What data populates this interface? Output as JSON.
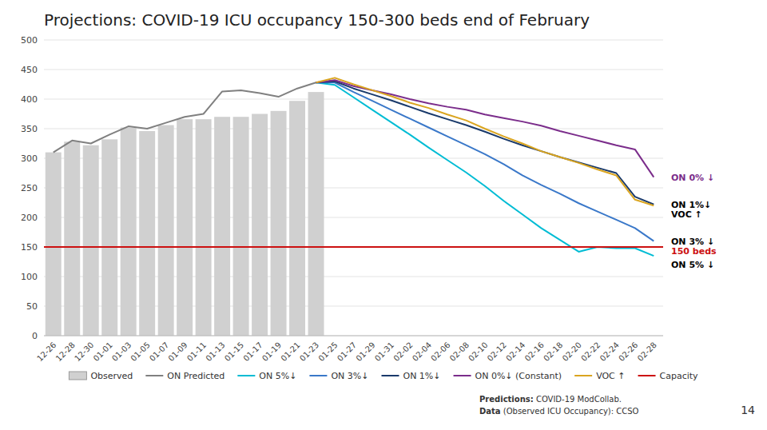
{
  "chart_data": {
    "type": "bar",
    "title": "Projections: COVID-19 ICU occupancy 150-300 beds end of February",
    "categories": [
      "12-26",
      "12-28",
      "12-30",
      "01-01",
      "01-03",
      "01-05",
      "01-07",
      "01-09",
      "01-11",
      "01-13",
      "01-15",
      "01-17",
      "01-19",
      "01-21",
      "01-23",
      "01-25",
      "01-27",
      "01-29",
      "01-31",
      "02-02",
      "02-04",
      "02-06",
      "02-08",
      "02-10",
      "02-12",
      "02-14",
      "02-16",
      "02-18",
      "02-20",
      "02-22",
      "02-24",
      "02-26",
      "02-28"
    ],
    "series": [
      {
        "name": "Observed",
        "type": "bar",
        "color": "#d0d0d0",
        "values": [
          310,
          328,
          322,
          332,
          352,
          346,
          356,
          366,
          366,
          370,
          370,
          375,
          380,
          397,
          412,
          null,
          null,
          null,
          null,
          null,
          null,
          null,
          null,
          null,
          null,
          null,
          null,
          null,
          null,
          null,
          null,
          null,
          null
        ]
      },
      {
        "name": "ON Predicted",
        "type": "line",
        "color": "#808080",
        "values": [
          310,
          330,
          325,
          340,
          354,
          350,
          360,
          370,
          375,
          413,
          415,
          410,
          404,
          418,
          428,
          null,
          null,
          null,
          null,
          null,
          null,
          null,
          null,
          null,
          null,
          null,
          null,
          null,
          null,
          null,
          null,
          null,
          null
        ]
      },
      {
        "name": "ON 5%↓",
        "type": "line",
        "color": "#00bcd4",
        "values": [
          null,
          null,
          null,
          null,
          null,
          null,
          null,
          null,
          null,
          null,
          null,
          null,
          null,
          null,
          428,
          424,
          403,
          382,
          361,
          340,
          318,
          297,
          276,
          253,
          228,
          205,
          182,
          162,
          142,
          150,
          148,
          148,
          135
        ]
      },
      {
        "name": "ON 3%↓",
        "type": "line",
        "color": "#3a78c9",
        "values": [
          null,
          null,
          null,
          null,
          null,
          null,
          null,
          null,
          null,
          null,
          null,
          null,
          null,
          null,
          428,
          428,
          412,
          397,
          382,
          367,
          352,
          337,
          322,
          307,
          290,
          271,
          255,
          240,
          224,
          210,
          196,
          182,
          160
        ]
      },
      {
        "name": "ON 1%↓",
        "type": "line",
        "color": "#1a3a6b",
        "values": [
          null,
          null,
          null,
          null,
          null,
          null,
          null,
          null,
          null,
          null,
          null,
          null,
          null,
          null,
          428,
          430,
          418,
          408,
          398,
          387,
          376,
          366,
          356,
          345,
          333,
          322,
          312,
          302,
          293,
          284,
          275,
          235,
          222
        ]
      },
      {
        "name": "ON 0%↓ (Constant)",
        "type": "line",
        "color": "#7b2d8b",
        "values": [
          null,
          null,
          null,
          null,
          null,
          null,
          null,
          null,
          null,
          null,
          null,
          null,
          null,
          null,
          428,
          432,
          422,
          415,
          408,
          400,
          393,
          387,
          382,
          374,
          368,
          362,
          355,
          346,
          338,
          330,
          322,
          315,
          268
        ]
      },
      {
        "name": "VOC ↑",
        "type": "line",
        "color": "#daa520",
        "values": [
          null,
          null,
          null,
          null,
          null,
          null,
          null,
          null,
          null,
          null,
          null,
          null,
          null,
          null,
          428,
          436,
          425,
          415,
          405,
          394,
          385,
          374,
          364,
          350,
          337,
          325,
          312,
          302,
          292,
          281,
          271,
          230,
          220
        ]
      }
    ],
    "reference_lines": [
      {
        "name": "Capacity",
        "value": 150,
        "color": "#cc1111"
      }
    ],
    "annotations": [
      {
        "text": "ON 0% ↓",
        "y": 268,
        "color": "#7b2d8b"
      },
      {
        "text": "ON 1%↓",
        "y": 222,
        "color": "#000000"
      },
      {
        "text": "VOC ↑",
        "y": 208,
        "color": "#000000"
      },
      {
        "text": "ON 3% ↓",
        "y": 160,
        "color": "#000000"
      },
      {
        "text": "150 beds",
        "y": 148,
        "color": "#cc1111"
      },
      {
        "text": "ON 5% ↓",
        "y": 120,
        "color": "#000000"
      }
    ],
    "footnotes": [
      {
        "bold": "Predictions:",
        "text": " COVID-19 ModCollab."
      },
      {
        "bold": "Data",
        "text": " (Observed ICU Occupancy): CCSO"
      }
    ],
    "page_number": "14",
    "ylim": [
      0,
      500
    ],
    "yticks": [
      0,
      50,
      100,
      150,
      200,
      250,
      300,
      350,
      400,
      450,
      500
    ],
    "grid": true,
    "legend": "bottom"
  }
}
